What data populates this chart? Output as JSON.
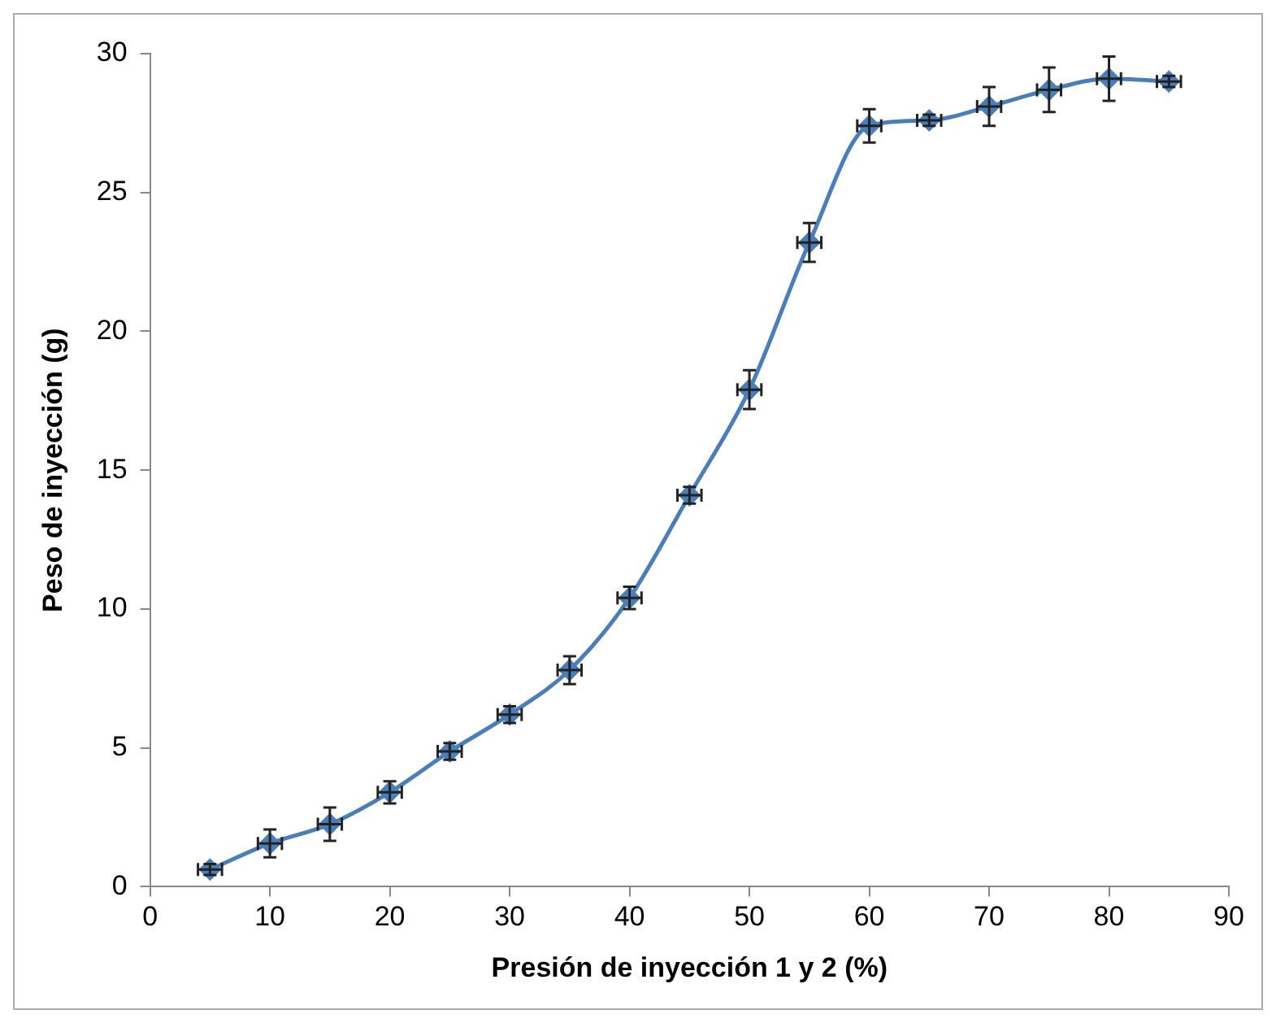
{
  "chart_data": {
    "type": "line",
    "xlabel": "Presión de inyección 1 y 2 (%)",
    "ylabel": "Peso de inyección (g)",
    "x": [
      5,
      10,
      15,
      20,
      25,
      30,
      35,
      40,
      45,
      50,
      55,
      60,
      65,
      70,
      75,
      80,
      85
    ],
    "series": [
      {
        "color": "#4a7ebb",
        "values": [
          0.62,
          1.56,
          2.25,
          3.4,
          4.87,
          6.2,
          7.8,
          10.4,
          14.1,
          17.9,
          23.2,
          27.4,
          27.6,
          28.1,
          28.7,
          29.1,
          29.0
        ],
        "errors": [
          0.2,
          0.5,
          0.6,
          0.4,
          0.3,
          0.3,
          0.5,
          0.4,
          0.3,
          0.7,
          0.7,
          0.6,
          0.2,
          0.7,
          0.8,
          0.8,
          0.2
        ],
        "xerrors": [
          1,
          1,
          1,
          1,
          1,
          1,
          1,
          1,
          1,
          1,
          1,
          1,
          1,
          1,
          1,
          1,
          1
        ]
      }
    ],
    "xlim": [
      0,
      90
    ],
    "xticks": [
      0,
      10,
      20,
      30,
      40,
      50,
      60,
      70,
      80,
      90
    ],
    "ylim": [
      0,
      30
    ],
    "yticks": [
      0,
      5,
      10,
      15,
      20,
      25,
      30
    ],
    "grid": false,
    "legend": false,
    "marker": "diamond",
    "line_style": "solid"
  }
}
